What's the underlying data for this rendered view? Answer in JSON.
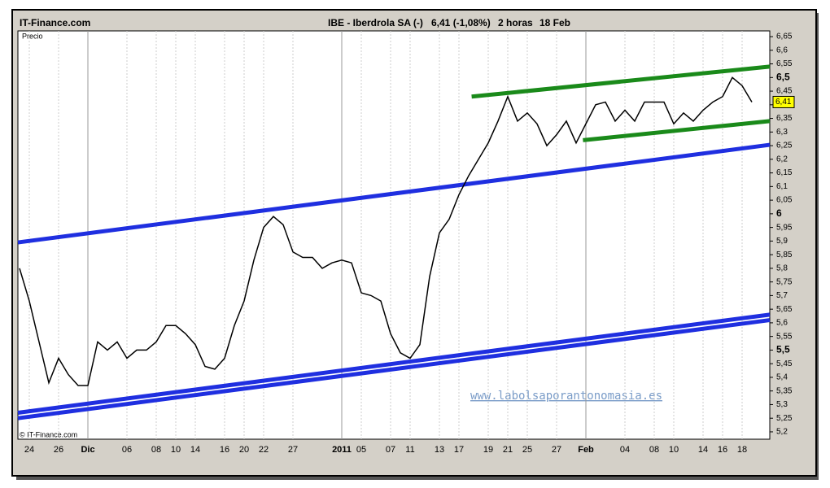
{
  "chart_data": {
    "type": "line",
    "site": "IT-Finance.com",
    "title": "IBE - Iberdrola SA (-)",
    "quote": "6,41 (-1,08%)",
    "interval": "2 horas",
    "date": "18 Feb",
    "y_label": "Precio",
    "copyright": "© IT-Finance.com",
    "watermark": "www.labolsaporantonomasia.es",
    "categories": [
      null,
      "24",
      null,
      null,
      "26",
      null,
      null,
      "Dic",
      null,
      null,
      null,
      "06",
      null,
      null,
      "08",
      null,
      "10",
      null,
      "14",
      null,
      null,
      "16",
      null,
      "20",
      null,
      "22",
      null,
      null,
      "27",
      null,
      null,
      null,
      null,
      "2011",
      null,
      "05",
      null,
      null,
      "07",
      null,
      "11",
      null,
      null,
      "13",
      null,
      "17",
      null,
      null,
      "19",
      null,
      "21",
      null,
      "25",
      null,
      null,
      "27",
      null,
      null,
      "Feb",
      null,
      null,
      null,
      "04",
      null,
      null,
      "08",
      null,
      "10",
      null,
      null,
      "14",
      null,
      "16",
      null,
      "18",
      null
    ],
    "series": [
      {
        "name": "IBE",
        "color": "#000000",
        "values": [
          5.8,
          5.68,
          5.53,
          5.38,
          5.47,
          5.41,
          5.37,
          5.37,
          5.53,
          5.5,
          5.53,
          5.47,
          5.5,
          5.5,
          5.53,
          5.59,
          5.59,
          5.56,
          5.52,
          5.44,
          5.43,
          5.47,
          5.59,
          5.68,
          5.83,
          5.95,
          5.99,
          5.96,
          5.86,
          5.84,
          5.84,
          5.8,
          5.82,
          5.83,
          5.82,
          5.71,
          5.7,
          5.68,
          5.56,
          5.49,
          5.47,
          5.52,
          5.77,
          5.93,
          5.98,
          6.07,
          6.14,
          6.2,
          6.26,
          6.34,
          6.43,
          6.34,
          6.37,
          6.33,
          6.25,
          6.29,
          6.34,
          6.26,
          6.33,
          6.4,
          6.41,
          6.34,
          6.38,
          6.34,
          6.41,
          6.41,
          6.41,
          6.33,
          6.37,
          6.34,
          6.38,
          6.41,
          6.43,
          6.5,
          6.47,
          6.41
        ]
      }
    ],
    "last_price": {
      "value": 6.41,
      "label": "6,41"
    },
    "trendlines": [
      {
        "color": "#1f2fe0",
        "x": [
          -0.17,
          76.83
        ],
        "y": [
          5.895,
          6.253
        ]
      },
      {
        "color": "#1f2fe0",
        "x": [
          -0.17,
          76.83
        ],
        "y": [
          5.27,
          5.63
        ]
      },
      {
        "color": "#1f2fe0",
        "x": [
          -0.17,
          76.83
        ],
        "y": [
          5.25,
          5.61
        ]
      },
      {
        "color": "#1a8a1a",
        "x": [
          46.3,
          76.83
        ],
        "y": [
          6.43,
          6.54
        ]
      },
      {
        "color": "#1a8a1a",
        "x": [
          57.7,
          76.83
        ],
        "y": [
          6.27,
          6.34
        ]
      }
    ],
    "ylim": [
      5.173,
      6.671
    ],
    "yticks": [
      {
        "value": 5.2,
        "label": "5,2"
      },
      {
        "value": 5.25,
        "label": "5,25"
      },
      {
        "value": 5.3,
        "label": "5,3"
      },
      {
        "value": 5.35,
        "label": "5,35"
      },
      {
        "value": 5.4,
        "label": "5,4"
      },
      {
        "value": 5.45,
        "label": "5,45"
      },
      {
        "value": 5.5,
        "label": "5,5"
      },
      {
        "value": 5.55,
        "label": "5,55"
      },
      {
        "value": 5.6,
        "label": "5,6"
      },
      {
        "value": 5.65,
        "label": "5,65"
      },
      {
        "value": 5.7,
        "label": "5,7"
      },
      {
        "value": 5.75,
        "label": "5,75"
      },
      {
        "value": 5.8,
        "label": "5,8"
      },
      {
        "value": 5.85,
        "label": "5,85"
      },
      {
        "value": 5.9,
        "label": "5,9"
      },
      {
        "value": 5.95,
        "label": "5,95"
      },
      6,
      {
        "value": 6.05,
        "label": "6,05"
      },
      {
        "value": 6.1,
        "label": "6,1"
      },
      {
        "value": 6.15,
        "label": "6,15"
      },
      {
        "value": 6.2,
        "label": "6,2"
      },
      {
        "value": 6.25,
        "label": "6,25"
      },
      {
        "value": 6.3,
        "label": "6,3"
      },
      {
        "value": 6.35,
        "label": "6,35"
      },
      {
        "value": 6.4,
        "label": "6,4"
      },
      {
        "value": 6.45,
        "label": "6,45"
      },
      {
        "value": 6.5,
        "label": "6,5"
      },
      {
        "value": 6.55,
        "label": "6,55"
      },
      {
        "value": 6.6,
        "label": "6,6"
      },
      {
        "value": 6.65,
        "label": "6,65"
      }
    ],
    "xgrid": true
  }
}
